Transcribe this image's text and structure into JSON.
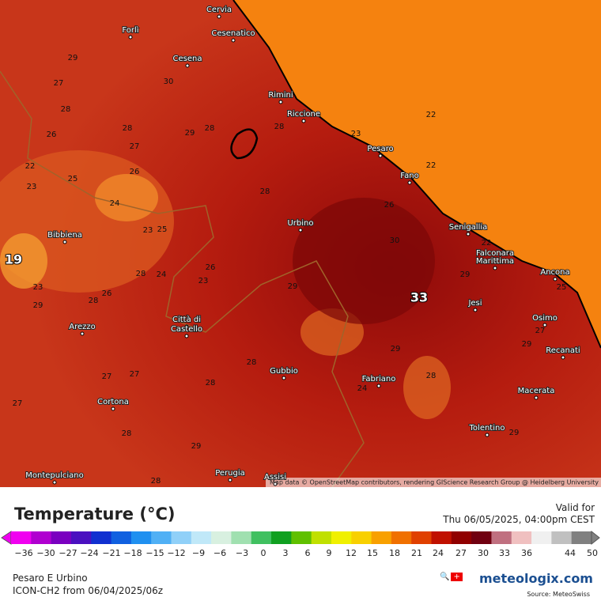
{
  "map": {
    "attribution": "Map data © OpenStreetMap contributors, rendering GIScience Research Group @ Heidelberg University",
    "cities": [
      "Cervia",
      "Forlì",
      "Cesenatico",
      "Cesena",
      "Rimini",
      "Riccione",
      "Pesaro",
      "Fano",
      "Urbino",
      "Senigallia",
      "Falconara",
      "Marittima",
      "Ancona",
      "Bibbiena",
      "Jesi",
      "Osimo",
      "Recanati",
      "Arezzo",
      "Città di",
      "Castello",
      "Gubbio",
      "Fabriano",
      "Macerata",
      "Cortona",
      "Tolentino",
      "Montepulciano",
      "Perugia",
      "Assisi"
    ],
    "contour_labels": [
      29,
      27,
      28,
      26,
      28,
      27,
      29,
      28,
      22,
      23,
      25,
      26,
      24,
      23,
      25,
      26,
      23,
      28,
      24,
      23,
      29,
      28,
      26,
      28,
      29,
      29,
      22,
      25,
      27,
      29,
      22,
      22,
      23,
      26,
      30,
      29,
      28,
      24,
      28,
      28,
      27,
      27,
      27,
      28,
      29,
      28,
      29,
      30,
      28
    ],
    "highlight_labels": [
      33,
      19
    ]
  },
  "legend": {
    "ticks": [
      "−36",
      "−30",
      "−27",
      "−24",
      "−21",
      "−18",
      "−15",
      "−12",
      "−9",
      "−6",
      "−3",
      "0",
      "3",
      "6",
      "9",
      "12",
      "15",
      "18",
      "21",
      "24",
      "27",
      "30",
      "33",
      "36",
      "44",
      "50"
    ]
  },
  "footer": {
    "title": "Temperature (°C)",
    "valid_label": "Valid for",
    "valid_time": "Thu 06/05/2025, 04:00pm CEST",
    "location": "Pesaro E Urbino",
    "model_run": "ICON-CH2 from  06/04/2025/06z",
    "brand": "meteologix.com",
    "source": "Source: MeteoSwiss"
  }
}
